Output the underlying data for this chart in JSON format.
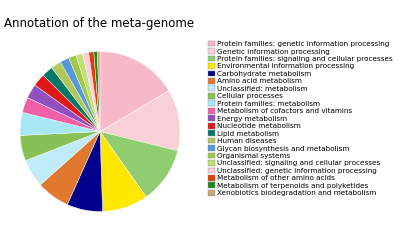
{
  "title": "Annotation of the meta-genome",
  "labels": [
    "Protein families: genetic information processing",
    "Genetic information processing",
    "Protein families: signaling and cellular processes",
    "Environmental information processing",
    "Carbohydrate metabolism",
    "Amino acid metabolism",
    "Unclassified: metabolism",
    "Cellular processes",
    "Protein families: metabolism",
    "Metabolism of cofactors and vitamins",
    "Energy metabolism",
    "Nucleotide metabolism",
    "Lipid metabolism",
    "Human diseases",
    "Glycan biosynthesis and metabolism",
    "Organismal systems",
    "Unclassified: signaling and cellular processes",
    "Unclassified: genetic information processing",
    "Metabolism of other amino acids",
    "Metabolism of terpenoids and polyketides",
    "Xenobiotics biodegradation and metabolism"
  ],
  "sizes": [
    16,
    12,
    11,
    9,
    7,
    6.5,
    5.5,
    5,
    4.5,
    3,
    2.8,
    2.5,
    2.2,
    2.0,
    1.8,
    1.5,
    1.3,
    1.2,
    1.0,
    0.7,
    0.5
  ],
  "colors": [
    "#F7B8C8",
    "#F9D0D8",
    "#90CC70",
    "#FFE800",
    "#00008B",
    "#E07830",
    "#C0ECFA",
    "#88C055",
    "#A8E8F5",
    "#F060A8",
    "#9050C0",
    "#E01818",
    "#007868",
    "#B0C858",
    "#5898D8",
    "#A0C848",
    "#C0E070",
    "#FFCCE0",
    "#E04000",
    "#208820",
    "#C8A878"
  ],
  "legend_fontsize": 5.2,
  "title_fontsize": 8.5
}
